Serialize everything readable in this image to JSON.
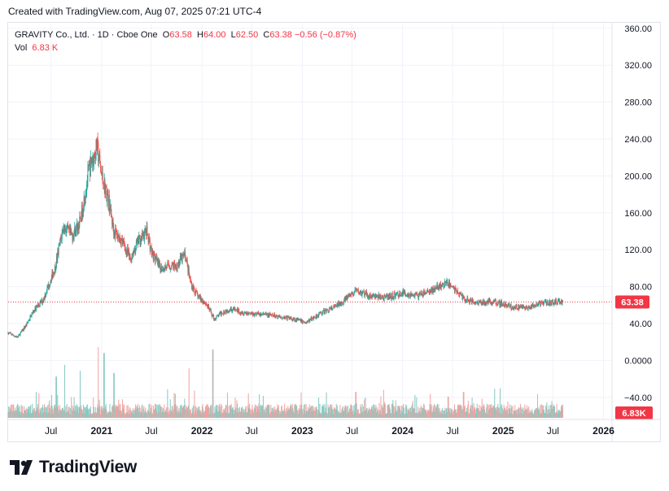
{
  "caption": "Created with TradingView.com, Aug 07, 2025 07:21 UTC-4",
  "legend": {
    "symbol": "GRAVITY Co., Ltd. · 1D · Cboe One",
    "o_label": "O",
    "o_value": "63.58",
    "h_label": "H",
    "h_value": "64.00",
    "l_label": "L",
    "l_value": "62.50",
    "c_label": "C",
    "c_value": "63.38",
    "change": "−0.56 (−0.87%)",
    "vol_label": "Vol",
    "vol_value": "6.83 K"
  },
  "brand": {
    "name": "TradingView",
    "logo_icon": "tradingview-logo-icon"
  },
  "colors": {
    "up": "#26a69a",
    "down": "#ef5350",
    "vol_up": "#84c9c1",
    "vol_down": "#f2a2a0",
    "last_price": "#f23645",
    "grid": "#f0f3fa",
    "axis_text": "#131722"
  },
  "chart_data": {
    "type": "candlestick",
    "title": "",
    "xlabel": "",
    "ylabel": "",
    "ylim": [
      -64,
      366
    ],
    "y_ticks": [
      "360.00",
      "320.00",
      "280.00",
      "240.00",
      "200.00",
      "160.00",
      "120.00",
      "80.00",
      "40.00",
      "0.0000",
      "−40.00"
    ],
    "y_tick_values": [
      360,
      320,
      280,
      240,
      200,
      160,
      120,
      80,
      40,
      0,
      -40
    ],
    "x_ticks": [
      "Jul",
      "2021",
      "Jul",
      "2022",
      "Jul",
      "2023",
      "Jul",
      "2024",
      "Jul",
      "2025",
      "Jul",
      "2026"
    ],
    "x_tick_dates": [
      "2020-07-01",
      "2021-01-01",
      "2021-07-01",
      "2022-01-01",
      "2022-07-01",
      "2023-01-01",
      "2023-07-01",
      "2024-01-01",
      "2024-07-01",
      "2025-01-01",
      "2025-07-01",
      "2026-01-01"
    ],
    "x_start": "2020-01-27",
    "x_end": "2026-02-01",
    "last_price": 63.38,
    "last_price_label": "63.38",
    "last_volume_label": "6.83K",
    "price_path": [
      [
        "2020-01-27",
        30
      ],
      [
        "2020-03-01",
        25
      ],
      [
        "2020-04-01",
        38
      ],
      [
        "2020-05-01",
        55
      ],
      [
        "2020-06-01",
        65
      ],
      [
        "2020-07-15",
        100
      ],
      [
        "2020-08-15",
        145
      ],
      [
        "2020-09-15",
        135
      ],
      [
        "2020-10-15",
        150
      ],
      [
        "2020-11-15",
        205
      ],
      [
        "2020-12-15",
        232
      ],
      [
        "2021-01-01",
        200
      ],
      [
        "2021-01-25",
        175
      ],
      [
        "2021-02-15",
        140
      ],
      [
        "2021-03-15",
        130
      ],
      [
        "2021-04-15",
        110
      ],
      [
        "2021-05-15",
        130
      ],
      [
        "2021-06-15",
        140
      ],
      [
        "2021-07-01",
        118
      ],
      [
        "2021-08-01",
        100
      ],
      [
        "2021-09-01",
        102
      ],
      [
        "2021-10-01",
        103
      ],
      [
        "2021-11-01",
        115
      ],
      [
        "2021-11-20",
        85
      ],
      [
        "2021-12-15",
        70
      ],
      [
        "2022-01-15",
        62
      ],
      [
        "2022-02-15",
        45
      ],
      [
        "2022-03-15",
        52
      ],
      [
        "2022-04-15",
        56
      ],
      [
        "2022-06-01",
        52
      ],
      [
        "2022-08-01",
        50
      ],
      [
        "2022-10-01",
        48
      ],
      [
        "2022-12-01",
        45
      ],
      [
        "2023-01-15",
        41
      ],
      [
        "2023-03-01",
        50
      ],
      [
        "2023-05-01",
        58
      ],
      [
        "2023-07-15",
        75
      ],
      [
        "2023-09-01",
        70
      ],
      [
        "2023-11-01",
        68
      ],
      [
        "2024-01-01",
        73
      ],
      [
        "2024-03-01",
        70
      ],
      [
        "2024-05-01",
        78
      ],
      [
        "2024-06-15",
        84
      ],
      [
        "2024-08-15",
        66
      ],
      [
        "2024-10-01",
        63
      ],
      [
        "2024-12-01",
        64
      ],
      [
        "2025-02-01",
        58
      ],
      [
        "2025-04-01",
        57
      ],
      [
        "2025-06-01",
        63
      ],
      [
        "2025-08-07",
        63.38
      ]
    ],
    "volume_scale_max_k": 100,
    "volume_spikes": [
      [
        "2020-07-20",
        35
      ],
      [
        "2020-08-20",
        45
      ],
      [
        "2020-10-15",
        40
      ],
      [
        "2020-12-20",
        60
      ],
      [
        "2021-01-10",
        55
      ],
      [
        "2021-02-15",
        38
      ],
      [
        "2021-11-15",
        42
      ],
      [
        "2022-02-10",
        58
      ],
      [
        "2023-07-15",
        22
      ],
      [
        "2024-06-15",
        18
      ],
      [
        "2024-08-10",
        22
      ]
    ]
  }
}
